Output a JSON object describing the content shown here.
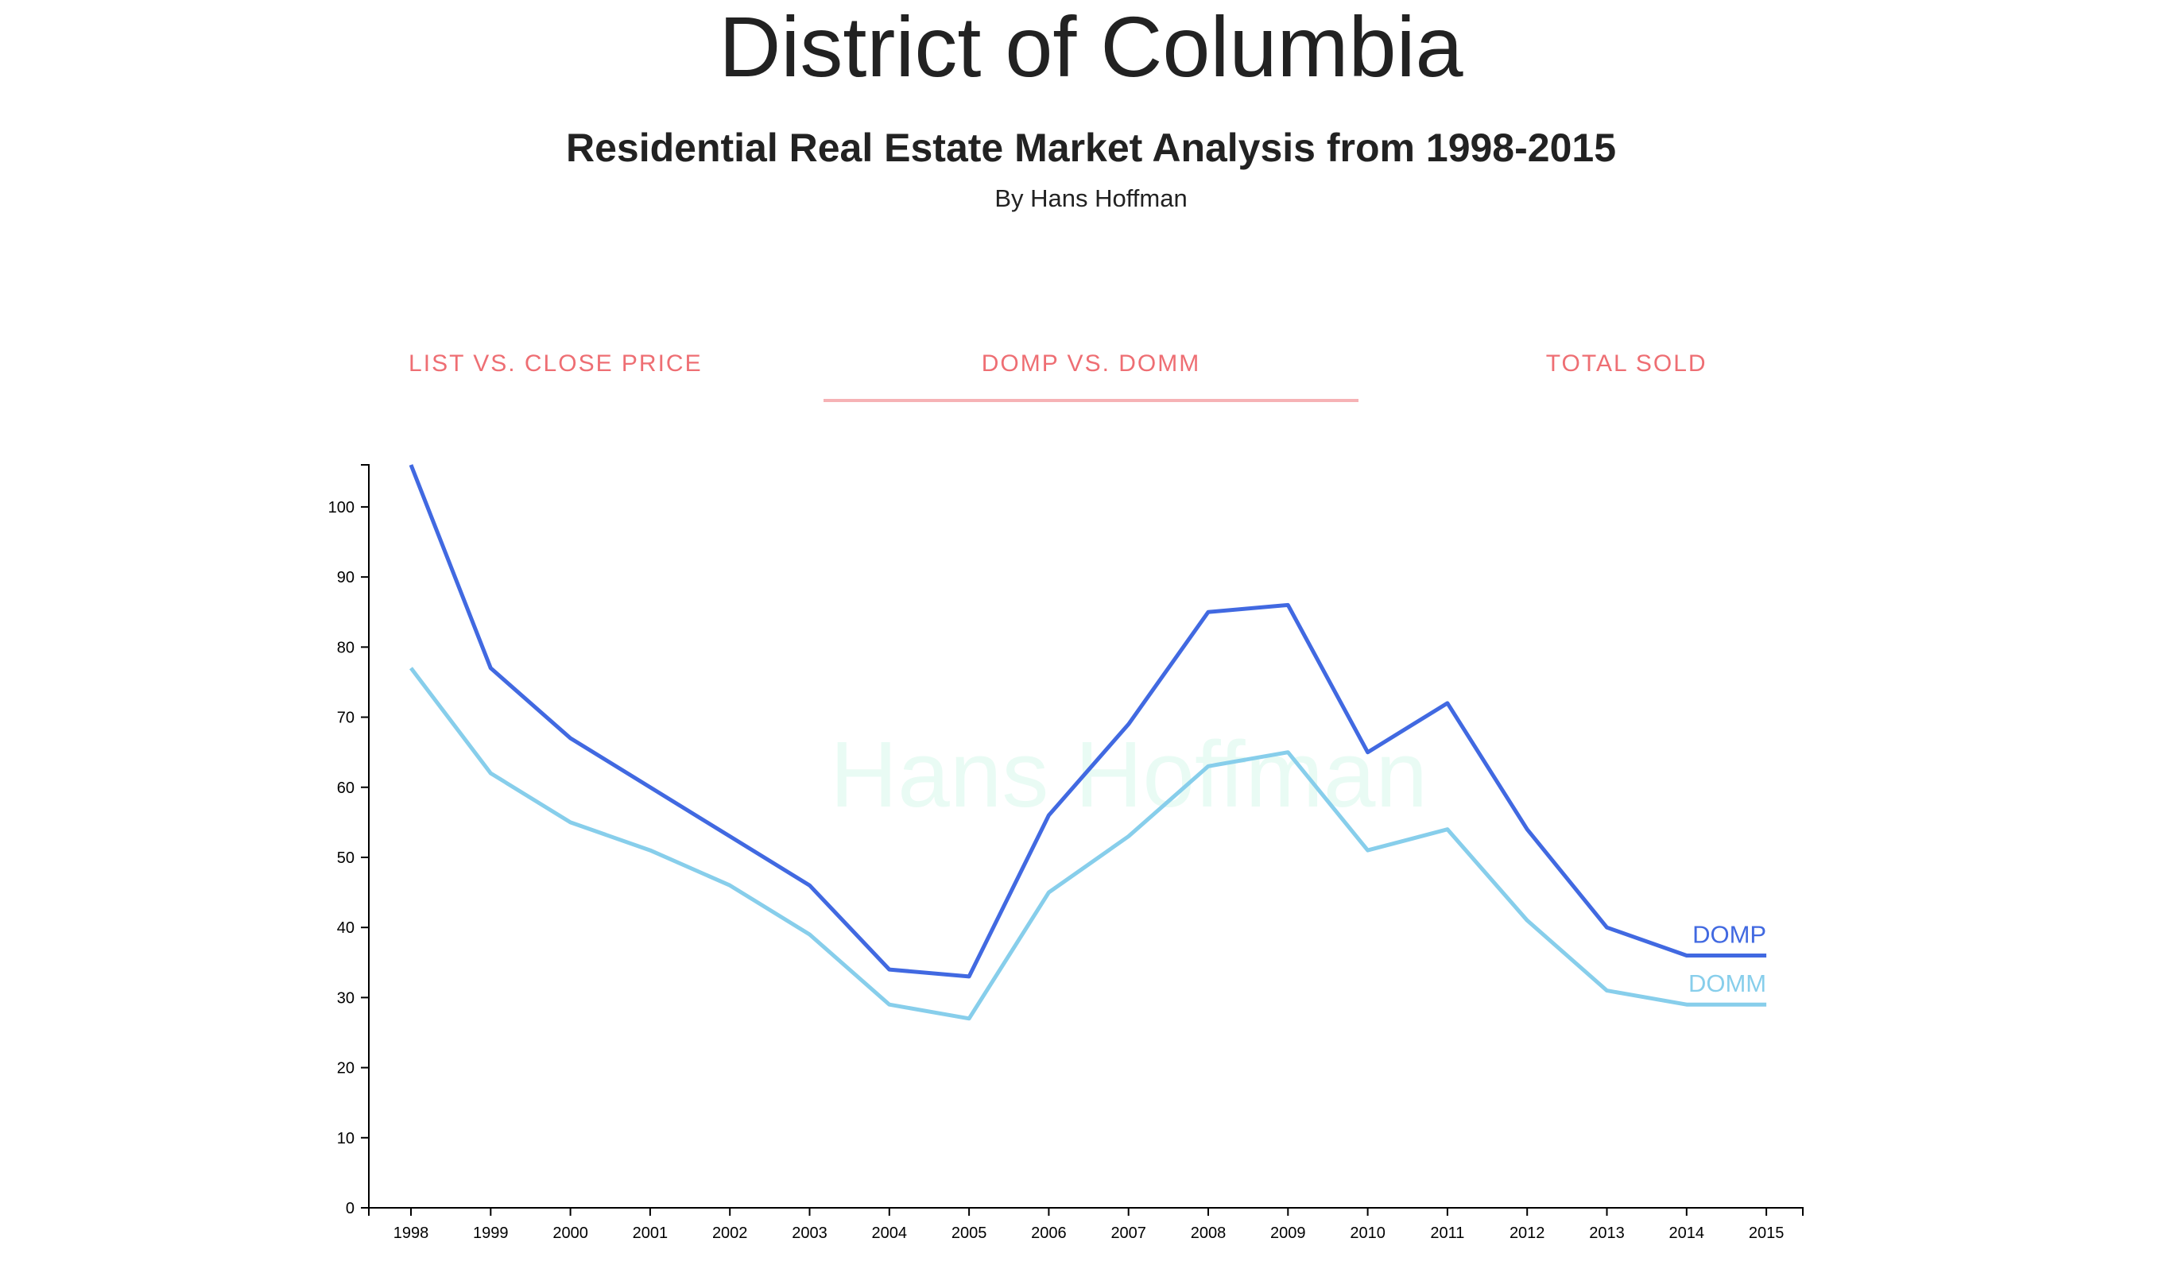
{
  "header": {
    "title": "District of Columbia",
    "subtitle": "Residential Real Estate Market Analysis from 1998-2015",
    "byline": "By Hans Hoffman"
  },
  "tabs": [
    {
      "label": "LIST VS. CLOSE PRICE",
      "active": false
    },
    {
      "label": "DOMP VS. DOMM",
      "active": true
    },
    {
      "label": "TOTAL SOLD",
      "active": false
    }
  ],
  "colors": {
    "tab_text": "#ee6e73",
    "tab_indicator": "#f6b2b5",
    "domp": "#4169e1",
    "domm": "#87ceeb",
    "watermark": "#e9fbf4"
  },
  "chart_data": {
    "type": "line",
    "watermark": "Hans Hoffman",
    "x": [
      "1998",
      "1999",
      "2000",
      "2001",
      "2002",
      "2003",
      "2004",
      "2005",
      "2006",
      "2007",
      "2008",
      "2009",
      "2010",
      "2011",
      "2012",
      "2013",
      "2014",
      "2015"
    ],
    "yticks": [
      0,
      10,
      20,
      30,
      40,
      50,
      60,
      70,
      80,
      90,
      100
    ],
    "ylim": [
      0,
      106
    ],
    "grid": false,
    "series": [
      {
        "name": "DOMP",
        "color": "#4169e1",
        "values": [
          106,
          77,
          67,
          60,
          53,
          46,
          34,
          33,
          56,
          69,
          85,
          86,
          65,
          72,
          54,
          40,
          36,
          36
        ]
      },
      {
        "name": "DOMM",
        "color": "#87ceeb",
        "values": [
          77,
          62,
          55,
          51,
          46,
          39,
          29,
          27,
          45,
          53,
          63,
          65,
          51,
          54,
          41,
          31,
          29,
          29
        ]
      }
    ]
  }
}
